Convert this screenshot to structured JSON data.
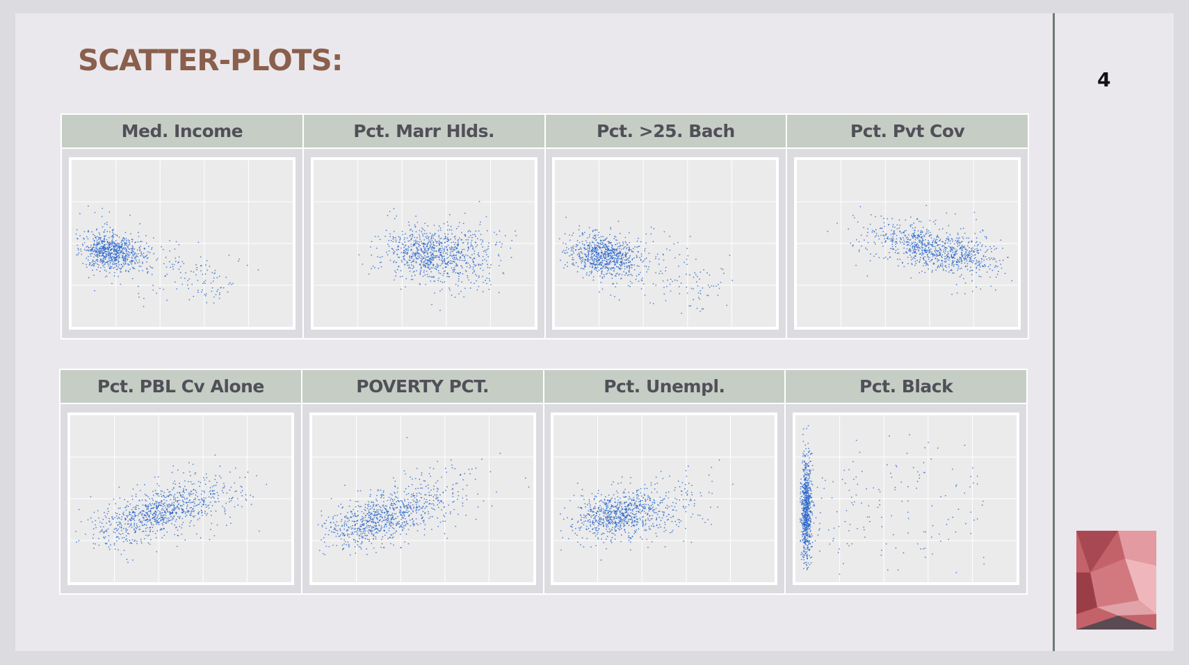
{
  "title": "SCATTER-PLOTS:",
  "page_number": 4,
  "panels": [
    [
      "Med. Income",
      "Pct. Marr Hlds.",
      "Pct. >25. Bach",
      "Pct. Pvt Cov"
    ],
    [
      "Pct. PBL Cv Alone",
      "POVERTY PCT.",
      "Pct. Unempl.",
      "Pct. Black"
    ]
  ]
}
